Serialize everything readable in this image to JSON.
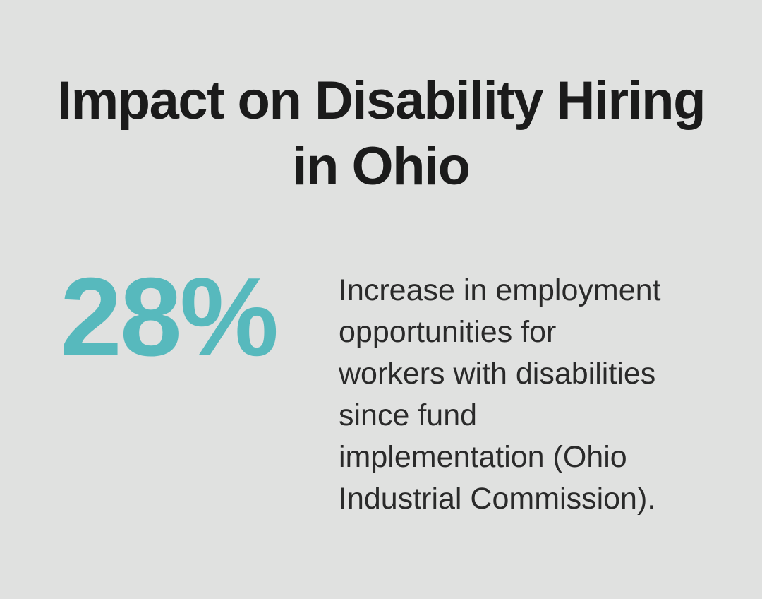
{
  "page": {
    "background_color": "#e0e1e0"
  },
  "header": {
    "title": "Impact on Disability Hiring in Ohio",
    "title_lines": [
      "Impact on Disability Hiring",
      "in Ohio"
    ],
    "title_color": "#1b1b1b"
  },
  "stat": {
    "value": "28%",
    "value_color": "#57b9bd",
    "description": "Increase in employment opportunities for workers with disabilities since fund implementation (Ohio Industrial Commission).",
    "description_lines": [
      "Increase in employment",
      "opportunities for",
      "workers with disabilities",
      "since fund",
      "implementation (Ohio",
      "Industrial Commission)."
    ],
    "description_color": "#2a2a2a"
  }
}
